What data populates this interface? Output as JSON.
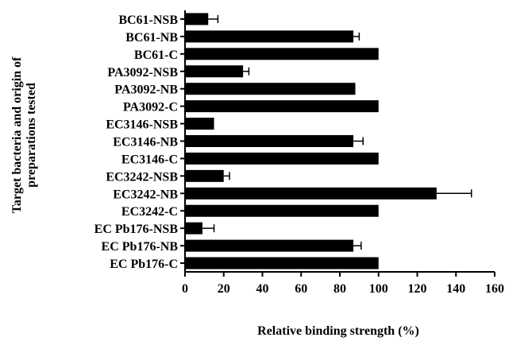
{
  "chart_data": {
    "type": "bar",
    "orientation": "horizontal",
    "ylabel_lines": [
      "Target bacteria and origin of",
      "preparations tested"
    ],
    "xlabel": "Relative binding strength (%)",
    "xlim": [
      0,
      160
    ],
    "xticks": [
      0,
      20,
      40,
      60,
      80,
      100,
      120,
      140,
      160
    ],
    "grid": false,
    "categories": [
      "BC61-NSB",
      "BC61-NB",
      "BC61-C",
      "PA3092-NSB",
      "PA3092-NB",
      "PA3092-C",
      "EC3146-NSB",
      "EC3146-NB",
      "EC3146-C",
      "EC3242-NSB",
      "EC3242-NB",
      "EC3242-C",
      "EC Pb176-NSB",
      "EC Pb176-NB",
      "EC Pb176-C"
    ],
    "values": [
      12,
      87,
      100,
      30,
      88,
      100,
      15,
      87,
      100,
      20,
      130,
      100,
      9,
      87,
      100
    ],
    "errors": [
      5,
      3,
      0,
      3,
      0,
      0,
      0,
      5,
      0,
      3,
      18,
      0,
      6,
      4,
      0
    ],
    "bar_color": "#000000"
  }
}
